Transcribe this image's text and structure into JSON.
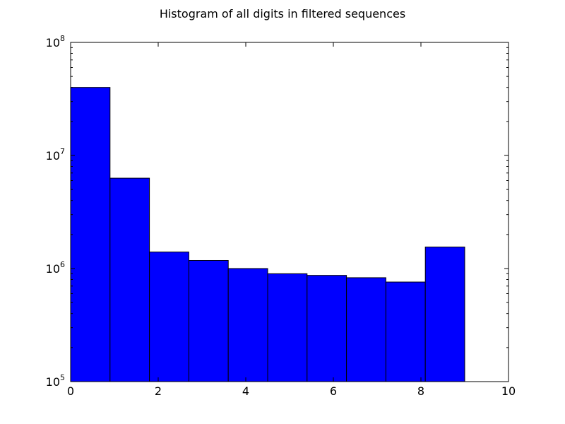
{
  "chart_data": {
    "type": "bar",
    "title": "Histogram of all digits in filtered sequences",
    "xlabel": "",
    "ylabel": "",
    "xlim": [
      0,
      10
    ],
    "ylim": [
      100000,
      100000000
    ],
    "yscale": "log",
    "grid": false,
    "bins": [
      {
        "x0": 0.0,
        "x1": 0.9,
        "value": 40000000
      },
      {
        "x0": 0.9,
        "x1": 1.8,
        "value": 6300000
      },
      {
        "x0": 1.8,
        "x1": 2.7,
        "value": 1400000
      },
      {
        "x0": 2.7,
        "x1": 3.6,
        "value": 1180000
      },
      {
        "x0": 3.6,
        "x1": 4.5,
        "value": 1000000
      },
      {
        "x0": 4.5,
        "x1": 5.4,
        "value": 900000
      },
      {
        "x0": 5.4,
        "x1": 6.3,
        "value": 870000
      },
      {
        "x0": 6.3,
        "x1": 7.2,
        "value": 830000
      },
      {
        "x0": 7.2,
        "x1": 8.1,
        "value": 760000
      },
      {
        "x0": 8.1,
        "x1": 9.0,
        "value": 1550000
      }
    ],
    "x_ticks": [
      0,
      2,
      4,
      6,
      8,
      10
    ],
    "x_tick_labels": [
      "0",
      "2",
      "4",
      "6",
      "8",
      "10"
    ],
    "y_ticks": [
      100000,
      1000000,
      10000000,
      100000000
    ],
    "y_tick_labels": [
      {
        "base": "10",
        "exp": "5"
      },
      {
        "base": "10",
        "exp": "6"
      },
      {
        "base": "10",
        "exp": "7"
      },
      {
        "base": "10",
        "exp": "8"
      }
    ],
    "bar_color": "#0000ff",
    "edge_color": "#000000"
  }
}
